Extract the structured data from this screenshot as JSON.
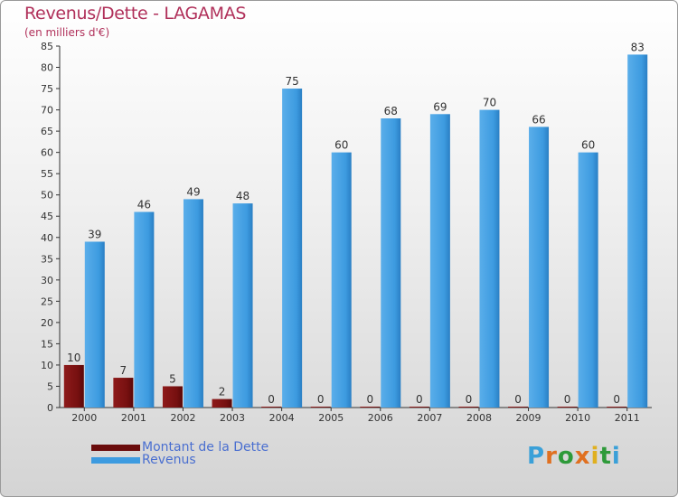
{
  "title": "Revenus/Dette - LAGAMAS",
  "subtitle": "(en milliers d'€)",
  "colors": {
    "dette": "#7a1010",
    "revenus": "#3d9be0",
    "title": "#b0305a"
  },
  "legend": {
    "dette": "Montant de la Dette",
    "revenus": "Revenus"
  },
  "logo": "Proxiti",
  "chart_data": {
    "type": "bar",
    "categories": [
      "2000",
      "2001",
      "2002",
      "2003",
      "2004",
      "2005",
      "2006",
      "2007",
      "2008",
      "2009",
      "2010",
      "2011"
    ],
    "series": [
      {
        "name": "Montant de la Dette",
        "values": [
          10,
          7,
          5,
          2,
          0,
          0,
          0,
          0,
          0,
          0,
          0,
          0
        ]
      },
      {
        "name": "Revenus",
        "values": [
          39,
          46,
          49,
          48,
          75,
          60,
          68,
          69,
          70,
          66,
          60,
          83
        ]
      }
    ],
    "ylim": [
      0,
      85
    ],
    "yticks": [
      0,
      5,
      10,
      15,
      20,
      25,
      30,
      35,
      40,
      45,
      50,
      55,
      60,
      65,
      70,
      75,
      80,
      85
    ],
    "grid": false,
    "legend_position": "bottom-left"
  }
}
